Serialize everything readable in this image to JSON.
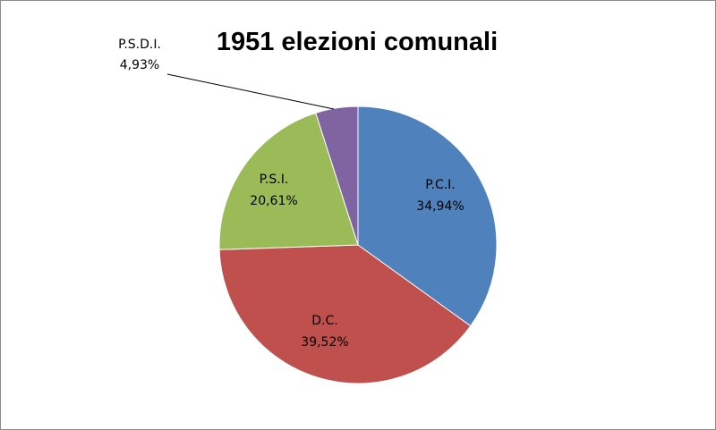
{
  "chart_data": {
    "type": "pie",
    "title": "1951 elezioni comunali",
    "slices": [
      {
        "name": "P.C.I.",
        "value": 34.94,
        "label": "34,94%",
        "color": "#4F81BD"
      },
      {
        "name": "D.C.",
        "value": 39.52,
        "label": "39,52%",
        "color": "#C0504D"
      },
      {
        "name": "P.S.I.",
        "value": 20.61,
        "label": "20,61%",
        "color": "#9BBB59"
      },
      {
        "name": "P.S.D.I.",
        "value": 4.93,
        "label": "4,93%",
        "color": "#8064A2"
      }
    ],
    "start_angle": "12 o'clock",
    "direction": "clockwise",
    "legend": "none",
    "data_labels": "category name and percentage"
  }
}
